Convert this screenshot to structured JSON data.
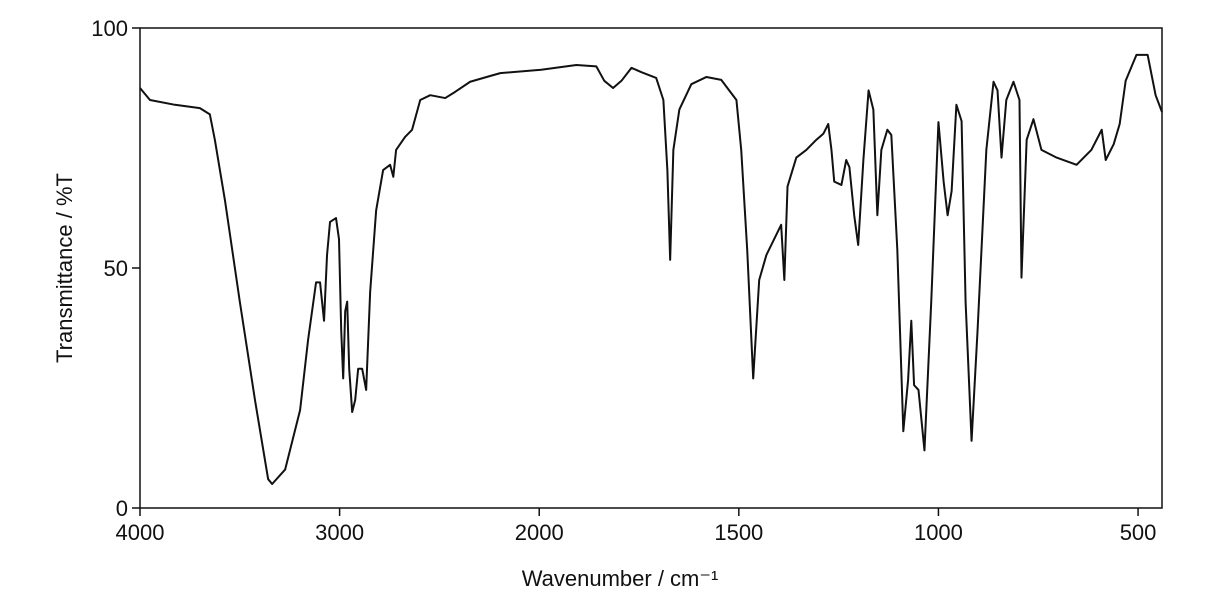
{
  "chart_data": {
    "type": "line",
    "xlabel": "Wavenumber / cm⁻¹",
    "ylabel": "Transmittance / %T",
    "xlim": [
      4000,
      440
    ],
    "ylim": [
      0,
      100
    ],
    "xticks": [
      4000,
      3000,
      2000,
      1500,
      1000,
      500
    ],
    "yticks": [
      0,
      50,
      100
    ],
    "x_scale_change": {
      "at": 2000,
      "factor": 2
    },
    "grid": false,
    "series": [
      {
        "color": "#111111",
        "x": [
          4000,
          3950,
          3825,
          3700,
          3650,
          3625,
          3574,
          3500,
          3424,
          3358,
          3338,
          3273,
          3198,
          3158,
          3118,
          3098,
          3078,
          3063,
          3048,
          3018,
          3003,
          2992,
          2982,
          2972,
          2962,
          2952,
          2937,
          2922,
          2907,
          2887,
          2867,
          2847,
          2817,
          2782,
          2747,
          2731,
          2717,
          2672,
          2637,
          2596,
          2546,
          2471,
          2421,
          2346,
          2246,
          2195,
          1995,
          1907,
          1857,
          1837,
          1815,
          1794,
          1769,
          1744,
          1707,
          1689,
          1679,
          1672,
          1664,
          1649,
          1619,
          1581,
          1544,
          1506,
          1494,
          1479,
          1464,
          1449,
          1431,
          1394,
          1386,
          1378,
          1356,
          1331,
          1306,
          1288,
          1276,
          1268,
          1261,
          1243,
          1231,
          1223,
          1211,
          1201,
          1188,
          1175,
          1163,
          1153,
          1143,
          1128,
          1118,
          1103,
          1088,
          1076,
          1068,
          1061,
          1050,
          1035,
          1018,
          1000,
          987,
          977,
          967,
          955,
          942,
          932,
          917,
          902,
          880,
          862,
          852,
          842,
          830,
          812,
          797,
          792,
          779,
          762,
          742,
          704,
          654,
          617,
          591,
          581,
          561,
          546,
          531,
          504,
          476,
          456,
          440
        ],
        "values": [
          87.5,
          85,
          84,
          83.3,
          82,
          76.7,
          64,
          43,
          22.5,
          6,
          5,
          8,
          20.4,
          35,
          47,
          47,
          39,
          52.7,
          59.6,
          60.4,
          56,
          37,
          27,
          41,
          43,
          29,
          20,
          22.5,
          29,
          29,
          24.6,
          45,
          62,
          70.4,
          71.5,
          69,
          74.6,
          77.3,
          78.8,
          85,
          86,
          85.4,
          86.7,
          88.8,
          90,
          90.6,
          91.3,
          92.3,
          92,
          89,
          87.5,
          89,
          91.7,
          90.8,
          89.6,
          85,
          70.4,
          51.7,
          74.6,
          83,
          88.3,
          89.8,
          89.2,
          85,
          74.6,
          53.8,
          27,
          47.5,
          52.7,
          59,
          47.5,
          67,
          73,
          74.6,
          76.7,
          78,
          80,
          74.6,
          68,
          67.3,
          72.5,
          71,
          61,
          54.8,
          72.5,
          87,
          83,
          61,
          74.6,
          78.8,
          77.7,
          53.8,
          16,
          26.7,
          39,
          25.6,
          24.6,
          12,
          43,
          80.4,
          68,
          61,
          66,
          84,
          80.6,
          43,
          14,
          37,
          74.6,
          88.8,
          87,
          73,
          85,
          88.8,
          85,
          48,
          76.7,
          81,
          74.6,
          73,
          71.5,
          74.6,
          78.8,
          72.5,
          75.8,
          80,
          89,
          94.4,
          94.4,
          86,
          82.5
        ]
      }
    ]
  }
}
